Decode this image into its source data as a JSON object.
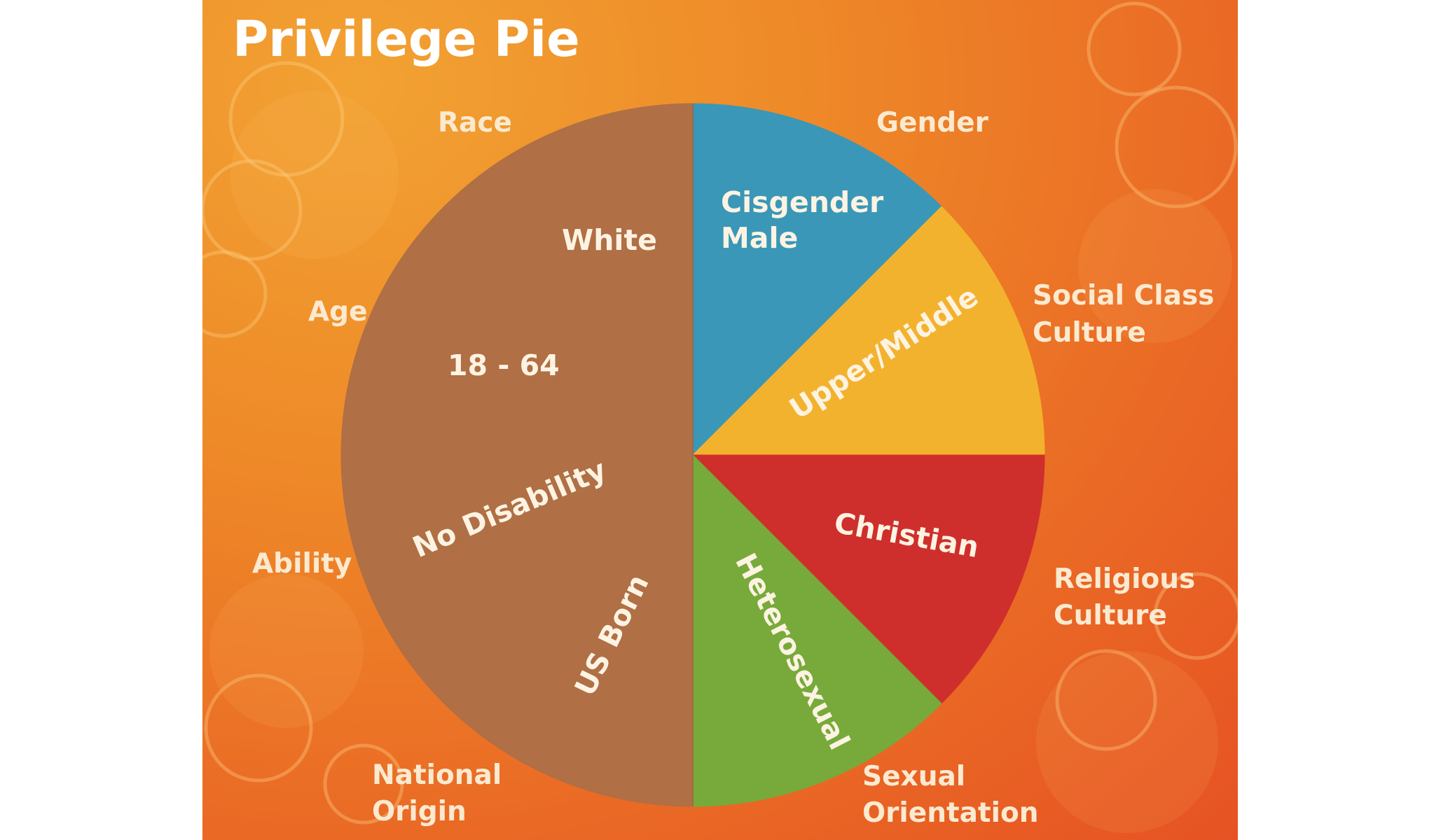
{
  "title": "Privilege Pie",
  "chart_data": {
    "type": "pie",
    "title": "Privilege Pie",
    "slices": [
      {
        "category": "Gender",
        "label": "Cisgender Male",
        "value": 12.5,
        "color": "#3a97b8"
      },
      {
        "category": "Social Class Culture",
        "label": "Upper/Middle",
        "value": 12.5,
        "color": "#f3b22d"
      },
      {
        "category": "Religious Culture",
        "label": "Christian",
        "value": 12.5,
        "color": "#cf2f2c"
      },
      {
        "category": "Sexual Orientation",
        "label": "Heterosexual",
        "value": 12.5,
        "color": "#77aa3a"
      },
      {
        "category": "National Origin",
        "label": "US Born",
        "value": 12.5,
        "color": "#b06f45"
      },
      {
        "category": "Ability",
        "label": "No Disability",
        "value": 12.5,
        "color": "#b06f45"
      },
      {
        "category": "Age",
        "label": "18 - 64",
        "value": 12.5,
        "color": "#b06f45"
      },
      {
        "category": "Race",
        "label": "White",
        "value": 12.5,
        "color": "#b06f45"
      }
    ]
  },
  "category_labels": {
    "race": "Race",
    "gender": "Gender",
    "social_class_1": "Social Class",
    "social_class_2": "Culture",
    "age": "Age",
    "ability": "Ability",
    "religious_1": "Religious",
    "religious_2": "Culture",
    "national_1": "National",
    "national_2": "Origin",
    "sexual_1": "Sexual",
    "sexual_2": "Orientation"
  },
  "slice_labels": {
    "cisgender_1": "Cisgender",
    "cisgender_2": "Male",
    "upper_middle": "Upper/Middle",
    "christian": "Christian",
    "heterosexual": "Heterosexual",
    "us_born": "US Born",
    "no_disability": "No Disability",
    "age_range": "18 - 64",
    "white": "White"
  },
  "colors": {
    "blue": "#3a97b8",
    "yellow": "#f3b22d",
    "red": "#cf2f2c",
    "green": "#77aa3a",
    "brown": "#b06f45",
    "background": "#ec7a26"
  }
}
